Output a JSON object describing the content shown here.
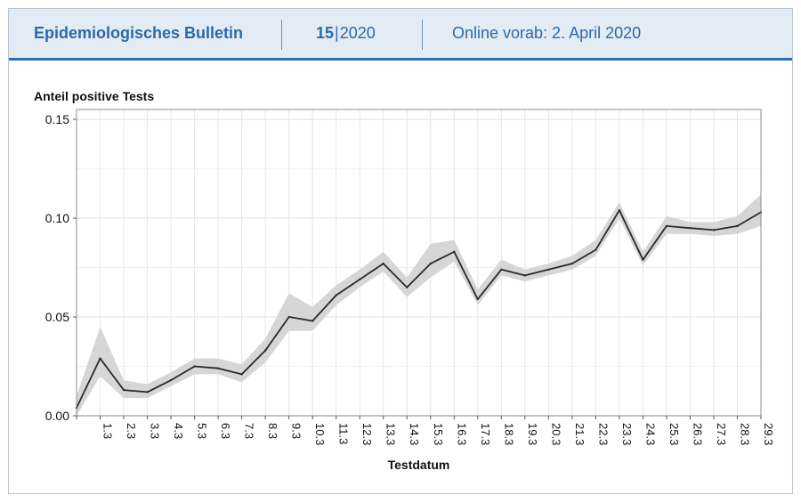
{
  "header": {
    "title": "Epidemiologisches Bulletin",
    "issue_number": "15",
    "issue_separator": "|",
    "issue_year": "2020",
    "date": "Online vorab: 2. April 2020"
  },
  "colors": {
    "header_bg": "#e3ebf5",
    "brand_blue": "#2b6aa8",
    "line": "#2a2a2a",
    "band": "#d6d6d6",
    "grid": "#e6e6e6"
  },
  "chart_data": {
    "type": "line",
    "ylabel": "Anteil positive Tests",
    "xlabel": "Testdatum",
    "ylim": [
      0.0,
      0.155
    ],
    "y_ticks": [
      "0.00",
      "0.05",
      "0.10",
      "0.15"
    ],
    "y_tick_values": [
      0.0,
      0.05,
      0.1,
      0.15
    ],
    "grid": true,
    "x": [
      "",
      "1.3",
      "2.3",
      "3.3",
      "4.3",
      "5.3",
      "6.3",
      "7.3",
      "8.3",
      "9.3",
      "10.3",
      "11.3",
      "12.3",
      "13.3",
      "14.3",
      "15.3",
      "16.3",
      "17.3",
      "18.3",
      "19.3",
      "20.3",
      "21.3",
      "22.3",
      "23.3",
      "24.3",
      "25.3",
      "26.3",
      "27.3",
      "28.3",
      "29.3"
    ],
    "series": [
      {
        "values": [
          0.004,
          0.029,
          0.013,
          0.012,
          0.018,
          0.025,
          0.024,
          0.021,
          0.033,
          0.05,
          0.048,
          0.061,
          0.069,
          0.077,
          0.065,
          0.077,
          0.083,
          0.059,
          0.074,
          0.071,
          0.074,
          0.077,
          0.084,
          0.104,
          0.079,
          0.096,
          0.095,
          0.094,
          0.096,
          0.103
        ],
        "lower": [
          0.0,
          0.02,
          0.009,
          0.009,
          0.015,
          0.021,
          0.021,
          0.017,
          0.027,
          0.043,
          0.043,
          0.056,
          0.065,
          0.073,
          0.06,
          0.07,
          0.078,
          0.056,
          0.071,
          0.068,
          0.071,
          0.074,
          0.081,
          0.1,
          0.076,
          0.092,
          0.092,
          0.091,
          0.092,
          0.096
        ],
        "upper": [
          0.01,
          0.045,
          0.018,
          0.016,
          0.022,
          0.029,
          0.029,
          0.026,
          0.039,
          0.062,
          0.055,
          0.066,
          0.074,
          0.083,
          0.07,
          0.087,
          0.089,
          0.064,
          0.079,
          0.074,
          0.077,
          0.081,
          0.089,
          0.108,
          0.083,
          0.101,
          0.098,
          0.098,
          0.101,
          0.112
        ]
      }
    ]
  }
}
